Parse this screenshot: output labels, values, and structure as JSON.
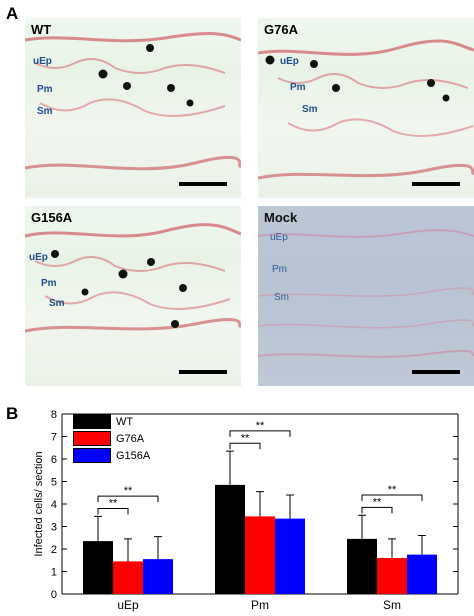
{
  "panel_a": {
    "letter": "A",
    "images": [
      {
        "title": "WT",
        "labels": [
          "uEp",
          "Pm",
          "Sm"
        ],
        "style": "tissue"
      },
      {
        "title": "G76A",
        "labels": [
          "uEp",
          "Pm",
          "Sm"
        ],
        "style": "tissue"
      },
      {
        "title": "G156A",
        "labels": [
          "uEp",
          "Pm",
          "Sm"
        ],
        "style": "tissue"
      },
      {
        "title": "Mock",
        "labels": [
          "uEp",
          "Pm",
          "Sm"
        ],
        "style": "mock"
      }
    ]
  },
  "panel_b": {
    "letter": "B"
  },
  "chart_data": {
    "type": "bar",
    "ylabel": "Infected cells/ section",
    "ylim": [
      0,
      8
    ],
    "yticks": [
      0,
      1,
      2,
      3,
      4,
      5,
      6,
      7,
      8
    ],
    "categories": [
      "uEp",
      "Pm",
      "Sm"
    ],
    "series": [
      {
        "name": "WT",
        "color": "#000000",
        "values": [
          2.35,
          4.85,
          2.45
        ],
        "errors": [
          1.1,
          1.5,
          1.05
        ]
      },
      {
        "name": "G76A",
        "color": "#ff0000",
        "values": [
          1.45,
          3.45,
          1.6
        ],
        "errors": [
          1.0,
          1.1,
          0.85
        ]
      },
      {
        "name": "G156A",
        "color": "#0000ff",
        "values": [
          1.55,
          3.35,
          1.75
        ],
        "errors": [
          1.0,
          1.05,
          0.85
        ]
      }
    ],
    "significance": [
      {
        "category": "uEp",
        "pair": [
          "WT",
          "G76A"
        ],
        "label": "**"
      },
      {
        "category": "uEp",
        "pair": [
          "WT",
          "G156A"
        ],
        "label": "**"
      },
      {
        "category": "Pm",
        "pair": [
          "WT",
          "G76A"
        ],
        "label": "**"
      },
      {
        "category": "Pm",
        "pair": [
          "WT",
          "G156A"
        ],
        "label": "**"
      },
      {
        "category": "Sm",
        "pair": [
          "WT",
          "G76A"
        ],
        "label": "**"
      },
      {
        "category": "Sm",
        "pair": [
          "WT",
          "G156A"
        ],
        "label": "**"
      }
    ],
    "legend_position": "top-left",
    "grid": false
  }
}
